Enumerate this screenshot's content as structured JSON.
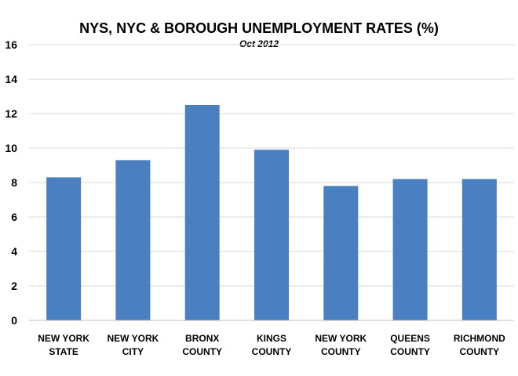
{
  "chart_data": {
    "type": "bar",
    "title": "NYS, NYC & BOROUGH UNEMPLOYMENT RATES (%)",
    "subtitle": "Oct 2012",
    "categories": [
      [
        "NEW YORK",
        "STATE"
      ],
      [
        "NEW YORK",
        "CITY"
      ],
      [
        "BRONX",
        "COUNTY"
      ],
      [
        "KINGS",
        "COUNTY"
      ],
      [
        "NEW YORK",
        "COUNTY"
      ],
      [
        "QUEENS",
        "COUNTY"
      ],
      [
        "RICHMOND",
        "COUNTY"
      ]
    ],
    "values": [
      8.3,
      9.3,
      12.5,
      9.9,
      7.8,
      8.2,
      8.2
    ],
    "yticks": [
      0,
      2,
      4,
      6,
      8,
      10,
      12,
      14,
      16
    ],
    "ylim": [
      0,
      16
    ],
    "xlabel": "",
    "ylabel": "",
    "grid": true,
    "legend": "none",
    "bar_color": "#4a7fc1"
  }
}
